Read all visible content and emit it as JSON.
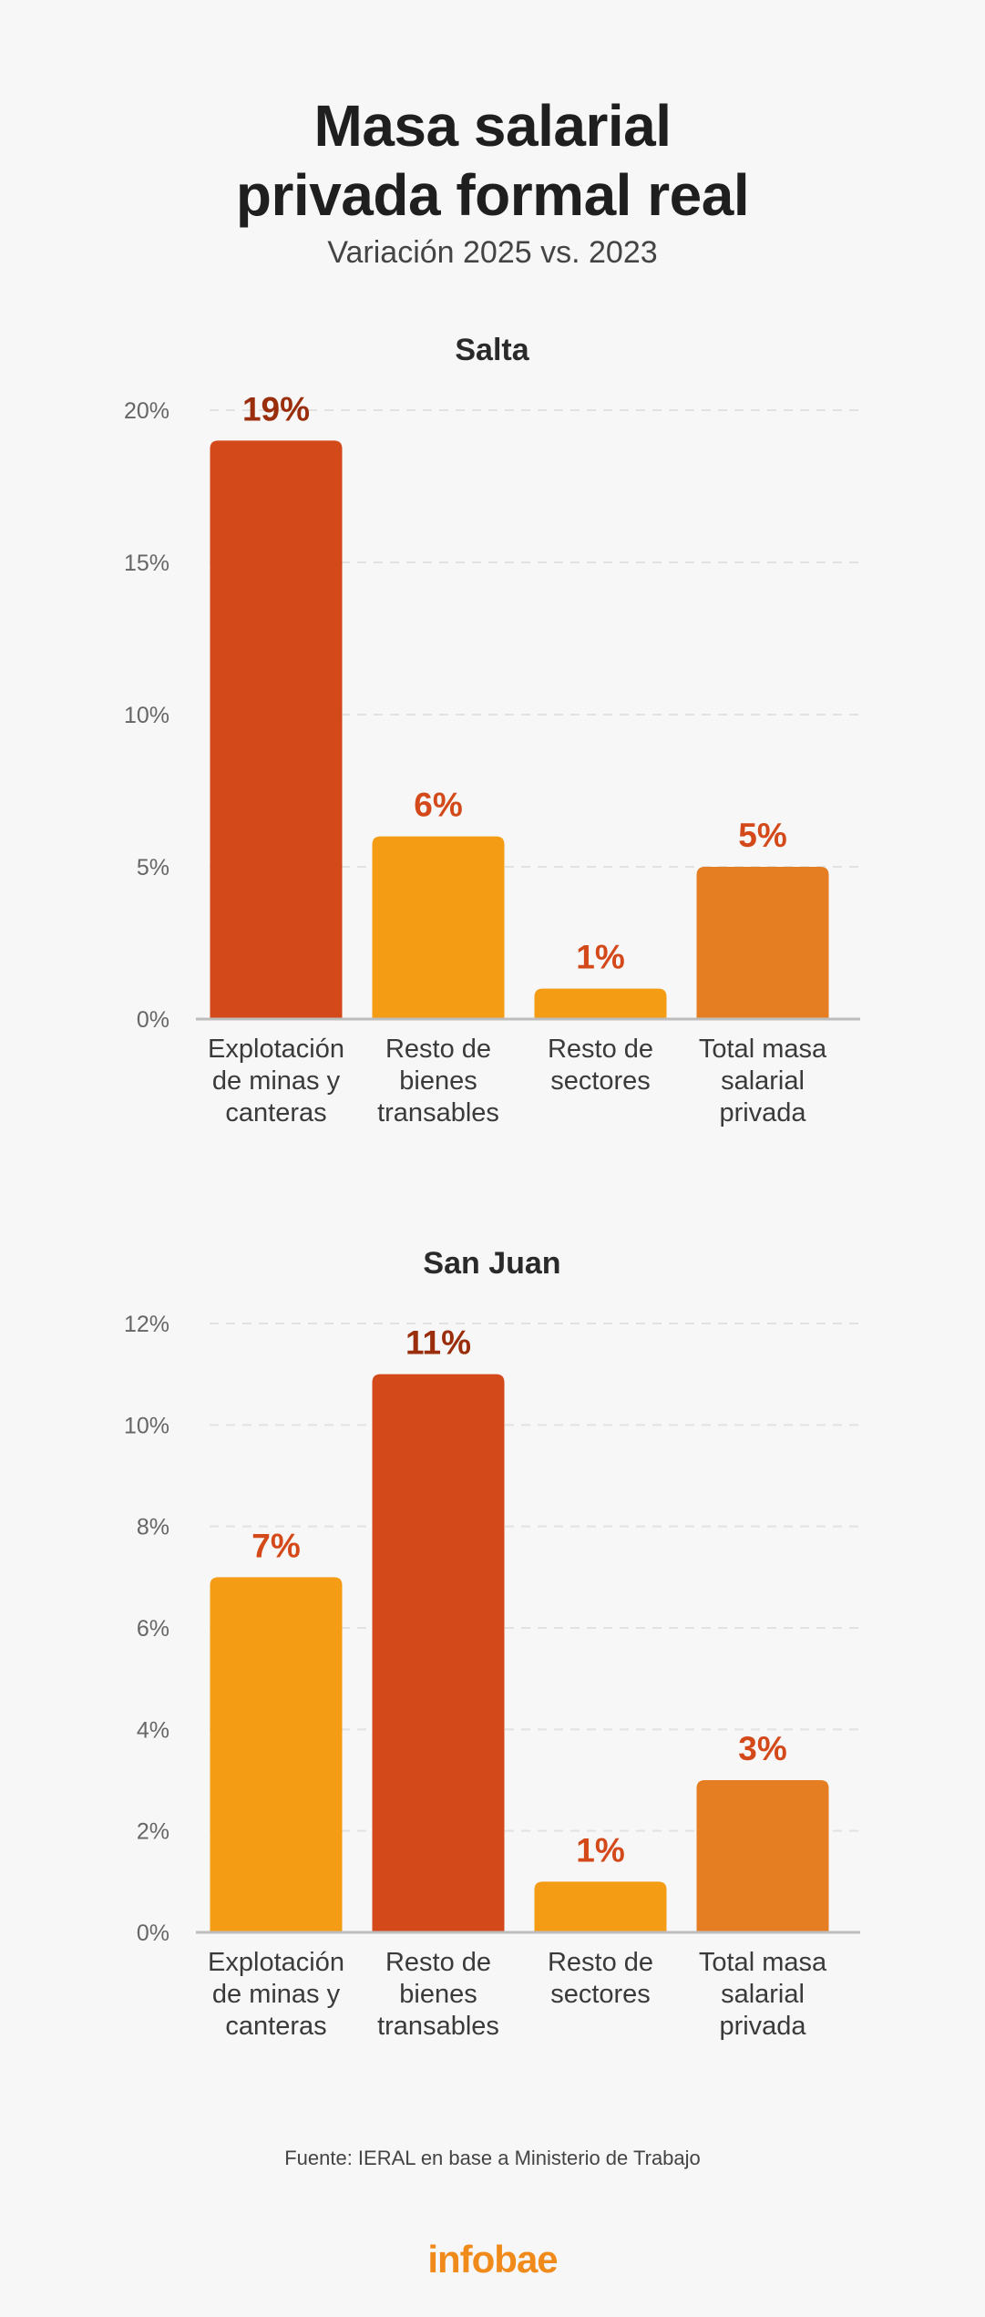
{
  "title_lines": [
    "Masa salarial",
    "privada formal real"
  ],
  "subtitle": "Variación 2025 vs. 2023",
  "source": "Fuente:  IERAL en base a Ministerio de Trabajo",
  "logo": "infobae",
  "colors": {
    "highlight": "#d4491a",
    "secondary": "#f39c14",
    "total": "#e57e22",
    "label_dark": "#9a2e0c",
    "label_orange": "#d4491a",
    "axis": "#bdbdbd",
    "grid": "#e2e2e2"
  },
  "chart_data": [
    {
      "type": "bar",
      "title": "Salta",
      "categories": [
        [
          "Explotación",
          "de minas y",
          "canteras"
        ],
        [
          "Resto de",
          "bienes",
          "transables"
        ],
        [
          "Resto de",
          "sectores"
        ],
        [
          "Total masa",
          "salarial",
          "privada"
        ]
      ],
      "values": [
        19,
        6,
        1,
        5
      ],
      "value_labels": [
        "19%",
        "6%",
        "1%",
        "5%"
      ],
      "bar_colors": [
        "highlight",
        "secondary",
        "secondary",
        "total"
      ],
      "label_colors": [
        "label_dark",
        "label_orange",
        "label_orange",
        "label_orange"
      ],
      "ylim": [
        0,
        20
      ],
      "yticks": [
        0,
        5,
        10,
        15,
        20
      ],
      "ytick_labels": [
        "0%",
        "5%",
        "10%",
        "15%",
        "20%"
      ],
      "grid": true
    },
    {
      "type": "bar",
      "title": "San Juan",
      "categories": [
        [
          "Explotación",
          "de minas y",
          "canteras"
        ],
        [
          "Resto de",
          "bienes",
          "transables"
        ],
        [
          "Resto de",
          "sectores"
        ],
        [
          "Total masa",
          "salarial",
          "privada"
        ]
      ],
      "values": [
        7,
        11,
        1,
        3
      ],
      "value_labels": [
        "7%",
        "11%",
        "1%",
        "3%"
      ],
      "bar_colors": [
        "secondary",
        "highlight",
        "secondary",
        "total"
      ],
      "label_colors": [
        "label_orange",
        "label_dark",
        "label_orange",
        "label_orange"
      ],
      "ylim": [
        0,
        12
      ],
      "yticks": [
        0,
        2,
        4,
        6,
        8,
        10,
        12
      ],
      "ytick_labels": [
        "0%",
        "2%",
        "4%",
        "6%",
        "8%",
        "10%",
        "12%"
      ],
      "grid": true
    }
  ]
}
